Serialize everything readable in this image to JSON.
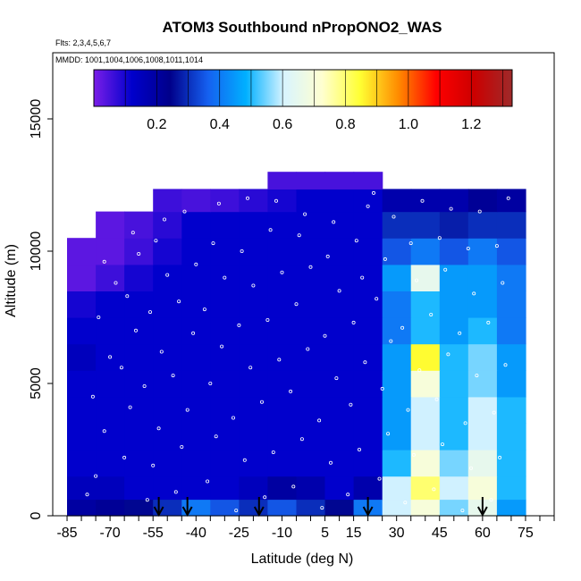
{
  "chart_data": {
    "type": "heatmap",
    "title": "ATOM3 Southbound nPropONO2_WAS",
    "flights_label": "Flts: 2,3,4,5,6,7",
    "dates_label": "MMDD: 1001,1004,1006,1008,1011,1014",
    "xlabel": "Latitude (deg N)",
    "ylabel": "Altitude (m)",
    "xlim": [
      -90,
      85
    ],
    "ylim": [
      0,
      17500
    ],
    "x_tick_labels": [
      "-85",
      "-70",
      "-55",
      "-40",
      "-25",
      "-10",
      "5",
      "15",
      "30",
      "45",
      "60",
      "75"
    ],
    "x_tick_values": [
      -85,
      -70,
      -55,
      -40,
      -25,
      -10,
      5,
      15,
      30,
      45,
      60,
      75
    ],
    "y_tick_labels": [
      "0",
      "5000",
      "10000",
      "15000"
    ],
    "y_tick_values": [
      0,
      5000,
      10000,
      15000
    ],
    "colorbar": {
      "range": [
        0,
        1.33
      ],
      "tick_labels": [
        "0.2",
        "0.4",
        "0.6",
        "0.8",
        "1.0",
        "1.2"
      ],
      "tick_values": [
        0.2,
        0.4,
        0.6,
        0.8,
        1.0,
        1.2
      ],
      "colors": [
        "#7a1ee8",
        "#0000cc",
        "#00008a",
        "#1560f0",
        "#00b0ff",
        "#d8f4ff",
        "#ffffd0",
        "#ffff33",
        "#ff8c00",
        "#ff0000",
        "#cc0000",
        "#9e2a2a"
      ]
    },
    "latitude_bins": [
      -80,
      -70,
      -60,
      -50,
      -40,
      -30,
      -20,
      -10,
      0,
      10,
      20,
      30,
      40,
      50,
      60,
      70
    ],
    "altitude_bins_m": [
      250,
      1000,
      2000,
      3000,
      4000,
      5000,
      6000,
      7000,
      8000,
      9000,
      10000,
      11000,
      12000,
      12700
    ],
    "values": [
      [
        0.2,
        0.22,
        0.25,
        0.3,
        0.4,
        0.35,
        0.3,
        0.35,
        0.3,
        0.25,
        0.4,
        0.6,
        0.7,
        0.55,
        0.65,
        0.45
      ],
      [
        0.15,
        0.15,
        0.12,
        0.12,
        0.12,
        0.12,
        0.15,
        0.2,
        0.18,
        0.12,
        0.18,
        0.6,
        0.8,
        0.6,
        0.7,
        0.5
      ],
      [
        0.12,
        0.12,
        0.12,
        0.12,
        0.12,
        0.12,
        0.12,
        0.12,
        0.12,
        0.12,
        0.12,
        0.5,
        0.7,
        0.55,
        0.65,
        0.5
      ],
      [
        0.12,
        0.12,
        0.12,
        0.12,
        0.12,
        0.12,
        0.12,
        0.12,
        0.12,
        0.12,
        0.12,
        0.45,
        0.6,
        0.5,
        0.6,
        0.5
      ],
      [
        0.12,
        0.12,
        0.12,
        0.12,
        0.12,
        0.12,
        0.12,
        0.12,
        0.12,
        0.12,
        0.12,
        0.45,
        0.6,
        0.5,
        0.6,
        0.5
      ],
      [
        0.12,
        0.12,
        0.12,
        0.12,
        0.12,
        0.12,
        0.12,
        0.12,
        0.12,
        0.12,
        0.12,
        0.45,
        0.7,
        0.5,
        0.55,
        0.45
      ],
      [
        0.15,
        0.12,
        0.12,
        0.12,
        0.12,
        0.12,
        0.12,
        0.12,
        0.12,
        0.12,
        0.12,
        0.45,
        0.85,
        0.5,
        0.55,
        0.45
      ],
      [
        0.12,
        0.12,
        0.12,
        0.12,
        0.12,
        0.12,
        0.12,
        0.12,
        0.12,
        0.12,
        0.12,
        0.4,
        0.5,
        0.45,
        0.5,
        0.4
      ],
      [
        0.1,
        0.12,
        0.12,
        0.12,
        0.12,
        0.12,
        0.12,
        0.12,
        0.12,
        0.12,
        0.12,
        0.4,
        0.5,
        0.45,
        0.45,
        0.4
      ],
      [
        0.03,
        0.06,
        0.1,
        0.12,
        0.12,
        0.12,
        0.12,
        0.12,
        0.12,
        0.12,
        0.12,
        0.45,
        0.65,
        0.45,
        0.45,
        0.4
      ],
      [
        0.03,
        0.03,
        0.06,
        0.1,
        0.12,
        0.12,
        0.12,
        0.12,
        0.12,
        0.12,
        0.12,
        0.35,
        0.4,
        0.35,
        0.4,
        0.35
      ],
      [
        null,
        0.03,
        0.05,
        0.08,
        0.12,
        0.12,
        0.12,
        0.12,
        0.12,
        0.12,
        0.12,
        0.3,
        0.3,
        0.28,
        0.3,
        0.3
      ],
      [
        null,
        null,
        null,
        0.06,
        0.05,
        0.06,
        0.08,
        0.1,
        0.12,
        0.12,
        0.12,
        0.18,
        0.18,
        0.18,
        0.22,
        0.2
      ],
      [
        null,
        null,
        null,
        null,
        null,
        null,
        null,
        0.05,
        0.05,
        0.05,
        0.05,
        null,
        null,
        null,
        null,
        null
      ]
    ],
    "sample_points": [
      [
        -78,
        800
      ],
      [
        -75,
        1500
      ],
      [
        -72,
        3200
      ],
      [
        -76,
        4500
      ],
      [
        -70,
        6000
      ],
      [
        -74,
        7500
      ],
      [
        -68,
        8800
      ],
      [
        -72,
        9600
      ],
      [
        -65,
        2200
      ],
      [
        -63,
        4100
      ],
      [
        -66,
        5600
      ],
      [
        -61,
        7000
      ],
      [
        -64,
        8300
      ],
      [
        -60,
        9900
      ],
      [
        -62,
        10700
      ],
      [
        -57,
        600
      ],
      [
        -55,
        1900
      ],
      [
        -53,
        3300
      ],
      [
        -58,
        4900
      ],
      [
        -52,
        6200
      ],
      [
        -56,
        7700
      ],
      [
        -50,
        9100
      ],
      [
        -54,
        10400
      ],
      [
        -51,
        11200
      ],
      [
        -47,
        900
      ],
      [
        -45,
        2600
      ],
      [
        -43,
        4000
      ],
      [
        -48,
        5300
      ],
      [
        -41,
        6900
      ],
      [
        -46,
        8100
      ],
      [
        -40,
        9500
      ],
      [
        -44,
        11500
      ],
      [
        -36,
        1300
      ],
      [
        -33,
        3000
      ],
      [
        -35,
        5000
      ],
      [
        -31,
        6400
      ],
      [
        -37,
        7800
      ],
      [
        -30,
        9000
      ],
      [
        -34,
        10300
      ],
      [
        -32,
        11800
      ],
      [
        -26,
        200
      ],
      [
        -23,
        2100
      ],
      [
        -27,
        3700
      ],
      [
        -21,
        5600
      ],
      [
        -25,
        7200
      ],
      [
        -20,
        8700
      ],
      [
        -24,
        10000
      ],
      [
        -22,
        12000
      ],
      [
        -16,
        700
      ],
      [
        -13,
        2400
      ],
      [
        -17,
        4300
      ],
      [
        -11,
        5900
      ],
      [
        -15,
        7400
      ],
      [
        -10,
        9200
      ],
      [
        -14,
        10800
      ],
      [
        -12,
        11900
      ],
      [
        -6,
        1100
      ],
      [
        -3,
        2900
      ],
      [
        -7,
        4700
      ],
      [
        -1,
        6300
      ],
      [
        -5,
        8000
      ],
      [
        0,
        9400
      ],
      [
        -4,
        10600
      ],
      [
        -2,
        11400
      ],
      [
        4,
        300
      ],
      [
        7,
        2000
      ],
      [
        3,
        3600
      ],
      [
        9,
        5200
      ],
      [
        5,
        6800
      ],
      [
        10,
        8500
      ],
      [
        6,
        9800
      ],
      [
        8,
        11100
      ],
      [
        13,
        800
      ],
      [
        17,
        2500
      ],
      [
        14,
        4200
      ],
      [
        19,
        5800
      ],
      [
        15,
        7300
      ],
      [
        18,
        9000
      ],
      [
        16,
        10400
      ],
      [
        20,
        11700
      ],
      [
        24,
        1400
      ],
      [
        27,
        3100
      ],
      [
        25,
        4800
      ],
      [
        28,
        6600
      ],
      [
        23,
        8200
      ],
      [
        26,
        9700
      ],
      [
        29,
        11300
      ],
      [
        22,
        12200
      ],
      [
        33,
        500
      ],
      [
        36,
        2300
      ],
      [
        34,
        4000
      ],
      [
        38,
        5500
      ],
      [
        32,
        7100
      ],
      [
        37,
        8900
      ],
      [
        35,
        10300
      ],
      [
        39,
        11900
      ],
      [
        43,
        1000
      ],
      [
        46,
        2700
      ],
      [
        44,
        4400
      ],
      [
        48,
        6100
      ],
      [
        42,
        7600
      ],
      [
        47,
        9300
      ],
      [
        45,
        10500
      ],
      [
        49,
        11600
      ],
      [
        53,
        200
      ],
      [
        56,
        1800
      ],
      [
        54,
        3500
      ],
      [
        58,
        5300
      ],
      [
        52,
        6900
      ],
      [
        57,
        8400
      ],
      [
        55,
        10100
      ],
      [
        59,
        11500
      ],
      [
        63,
        600
      ],
      [
        66,
        2200
      ],
      [
        64,
        3900
      ],
      [
        68,
        5700
      ],
      [
        62,
        7300
      ],
      [
        67,
        8800
      ],
      [
        65,
        10200
      ],
      [
        69,
        12000
      ]
    ],
    "arrow_latitudes": [
      -53,
      -43,
      -18,
      20,
      60
    ]
  }
}
